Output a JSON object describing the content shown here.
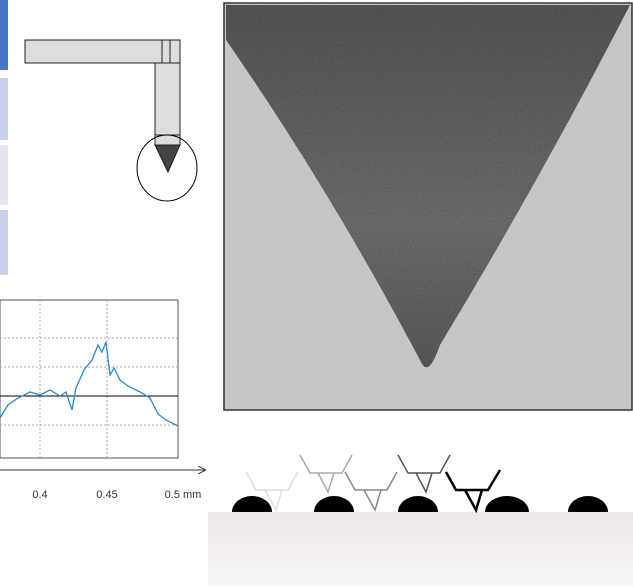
{
  "profile_plot": {
    "x_tick_labels": [
      "0.4",
      "0.45",
      "0.5 mm"
    ]
  }
}
